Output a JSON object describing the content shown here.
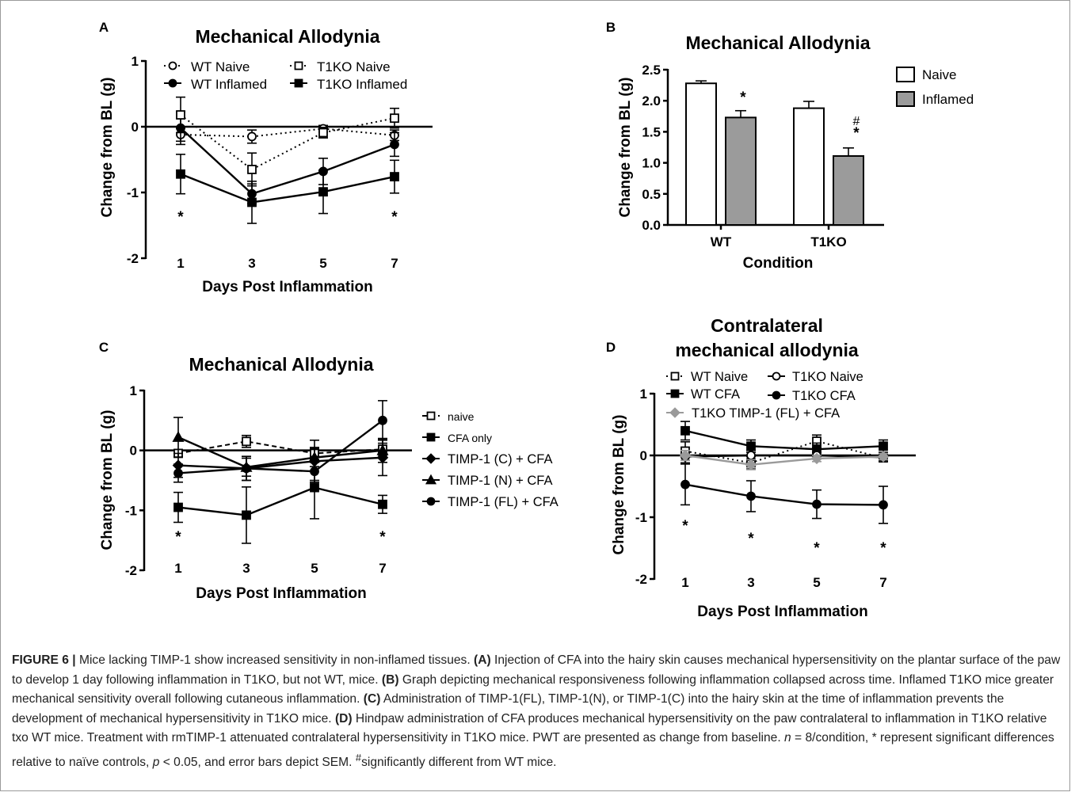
{
  "chart_data": [
    {
      "panel": "A",
      "type": "line",
      "title": "Mechanical Allodynia",
      "xlabel": "Days Post Inflammation",
      "ylabel": "Change from BL (g)",
      "categories": [
        "1",
        "3",
        "5",
        "7"
      ],
      "ylim": [
        -2,
        1
      ],
      "yticks": [
        "1",
        "0",
        "-1",
        "-2"
      ],
      "legend": "top",
      "series": [
        {
          "name": "WT Naive",
          "marker": "open-circle",
          "line": "dotted",
          "values": [
            -0.12,
            -0.15,
            -0.03,
            -0.13
          ],
          "err": [
            0.1,
            0.1,
            0.05,
            0.08
          ]
        },
        {
          "name": "WT Inflamed",
          "marker": "filled-circle",
          "line": "solid",
          "values": [
            -0.02,
            -1.02,
            -0.68,
            -0.27
          ],
          "err": [
            0.25,
            0.15,
            0.2,
            0.18
          ]
        },
        {
          "name": "T1KO Naive",
          "marker": "open-square",
          "line": "dotted",
          "values": [
            0.18,
            -0.65,
            -0.09,
            0.13
          ],
          "err": [
            0.27,
            0.25,
            0.08,
            0.15
          ]
        },
        {
          "name": "T1KO Inflamed",
          "marker": "filled-square",
          "line": "solid",
          "values": [
            -0.72,
            -1.15,
            -0.99,
            -0.76
          ],
          "err": [
            0.3,
            0.32,
            0.33,
            0.25
          ]
        }
      ],
      "annotations": [
        {
          "x": "1",
          "text": "*"
        },
        {
          "x": "7",
          "text": "*"
        }
      ]
    },
    {
      "panel": "B",
      "type": "bar",
      "title": "Mechanical Allodynia",
      "xlabel": "Condition",
      "ylabel": "Change from BL (g)",
      "categories": [
        "WT",
        "T1KO"
      ],
      "ylim": [
        0,
        2.5
      ],
      "yticks": [
        "0.0",
        "0.5",
        "1.0",
        "1.5",
        "2.0",
        "2.5"
      ],
      "legend": "right",
      "series": [
        {
          "name": "Naive",
          "color": "#ffffff",
          "values": [
            2.28,
            1.88
          ],
          "err": [
            0.04,
            0.11
          ]
        },
        {
          "name": "Inflamed",
          "color": "#9b9b9b",
          "values": [
            1.73,
            1.11
          ],
          "err": [
            0.11,
            0.13
          ]
        }
      ],
      "annotations": [
        {
          "x": "WT",
          "series": "Inflamed",
          "text": "*"
        },
        {
          "x": "T1KO",
          "series": "Inflamed",
          "text": "#"
        },
        {
          "x": "T1KO",
          "series": "Inflamed",
          "text": "*"
        }
      ]
    },
    {
      "panel": "C",
      "type": "line",
      "title": "Mechanical Allodynia",
      "xlabel": "Days Post Inflammation",
      "ylabel": "Change from BL (g)",
      "categories": [
        "1",
        "3",
        "5",
        "7"
      ],
      "ylim": [
        -2,
        1
      ],
      "yticks": [
        "1",
        "0",
        "-1",
        "-2"
      ],
      "legend": "right",
      "series": [
        {
          "name": "naive",
          "marker": "open-square",
          "line": "dashed",
          "values": [
            -0.05,
            0.15,
            -0.05,
            0.02
          ],
          "err": [
            0.05,
            0.1,
            0.1,
            0.1
          ]
        },
        {
          "name": "CFA only",
          "marker": "filled-square",
          "line": "solid",
          "values": [
            -0.95,
            -1.08,
            -0.62,
            -0.9
          ],
          "err": [
            0.25,
            0.47,
            0.52,
            0.15
          ]
        },
        {
          "name": "TIMP-1 (C) + CFA",
          "marker": "filled-diamond",
          "line": "solid",
          "values": [
            -0.25,
            -0.3,
            -0.18,
            -0.12
          ],
          "err": [
            0.2,
            0.2,
            0.35,
            0.3
          ]
        },
        {
          "name": "TIMP-1 (N) + CFA",
          "marker": "filled-triangle",
          "line": "solid",
          "values": [
            0.22,
            -0.28,
            -0.12,
            0.0
          ],
          "err": [
            0.33,
            0.15,
            0.15,
            0.2
          ]
        },
        {
          "name": "TIMP-1 (FL) + CFA",
          "marker": "filled-circle",
          "line": "solid",
          "values": [
            -0.38,
            -0.3,
            -0.35,
            0.5
          ],
          "err": [
            0.15,
            0.2,
            0.15,
            0.33
          ]
        }
      ],
      "annotations": [
        {
          "x": "1",
          "text": "*"
        },
        {
          "x": "7",
          "text": "*"
        }
      ]
    },
    {
      "panel": "D",
      "type": "line",
      "title": "Contralateral mechanical allodynia",
      "title_lines": [
        "Contralateral",
        "mechanical allodynia"
      ],
      "xlabel": "Days Post Inflammation",
      "ylabel": "Change from BL (g)",
      "categories": [
        "1",
        "3",
        "5",
        "7"
      ],
      "ylim": [
        -2,
        1
      ],
      "yticks": [
        "1",
        "0",
        "-1",
        "-2"
      ],
      "legend": "top",
      "series": [
        {
          "name": "WT Naive",
          "marker": "open-square",
          "line": "dotted",
          "color": "#000000",
          "values": [
            0.07,
            -0.12,
            0.23,
            -0.04
          ],
          "err": [
            0.15,
            0.1,
            0.1,
            0.05
          ]
        },
        {
          "name": "WT CFA",
          "marker": "filled-square",
          "line": "solid",
          "color": "#000000",
          "values": [
            0.4,
            0.15,
            0.1,
            0.15
          ],
          "err": [
            0.15,
            0.1,
            0.1,
            0.1
          ]
        },
        {
          "name": "T1KO Naive",
          "marker": "open-circle",
          "line": "solid",
          "color": "#000000",
          "values": [
            -0.02,
            0.0,
            0.0,
            -0.03
          ],
          "err": [
            0.1,
            0.08,
            0.05,
            0.05
          ]
        },
        {
          "name": "T1KO CFA",
          "marker": "filled-circle",
          "line": "solid",
          "color": "#000000",
          "values": [
            -0.47,
            -0.66,
            -0.79,
            -0.8
          ],
          "err": [
            0.33,
            0.25,
            0.23,
            0.3
          ]
        },
        {
          "name": "T1KO TIMP-1 (FL) + CFA",
          "marker": "filled-diamond",
          "line": "solid",
          "color": "#9a9a9a",
          "values": [
            0.0,
            -0.15,
            -0.05,
            -0.02
          ],
          "err": [
            0.08,
            0.08,
            0.05,
            0.05
          ]
        }
      ],
      "annotations": [
        {
          "x": "1",
          "text": "*"
        },
        {
          "x": "3",
          "text": "*"
        },
        {
          "x": "5",
          "text": "*"
        },
        {
          "x": "7",
          "text": "*"
        }
      ]
    }
  ],
  "caption": {
    "label": "FIGURE 6 |",
    "segments": [
      {
        "t": "Mice lacking TIMP-1 show increased sensitivity in non-inflamed tissues. "
      },
      {
        "t": "(A)",
        "b": true
      },
      {
        "t": " Injection of CFA into the hairy skin causes mechanical hypersensitivity on the plantar surface of the paw to develop 1 day following inflammation in T1KO, but not WT, mice. "
      },
      {
        "t": "(B)",
        "b": true
      },
      {
        "t": " Graph depicting mechanical responsiveness following inflammation collapsed across time. Inflamed T1KO mice greater mechanical sensitivity overall following cutaneous inflammation. "
      },
      {
        "t": "(C)",
        "b": true
      },
      {
        "t": " Administration of TIMP-1(FL), TIMP-1(N), or TIMP-1(C) into the hairy skin at the time of inflammation prevents the development of mechanical hypersensitivity in T1KO mice. "
      },
      {
        "t": "(D)",
        "b": true
      },
      {
        "t": " Hindpaw administration of CFA produces mechanical hypersensitivity on the paw contralateral to inflammation in T1KO relative txo WT mice. Treatment with rmTIMP-1 attenuated contralateral hypersensitivity in T1KO mice. PWT are presented as change from baseline. "
      },
      {
        "t": "n",
        "i": true
      },
      {
        "t": " = 8/condition, * represent significant differences relative to naïve controls, "
      },
      {
        "t": "p",
        "i": true
      },
      {
        "t": " < 0.05, and error bars depict SEM. "
      },
      {
        "t": "#",
        "sup": true
      },
      {
        "t": "significantly different from WT mice."
      }
    ]
  }
}
